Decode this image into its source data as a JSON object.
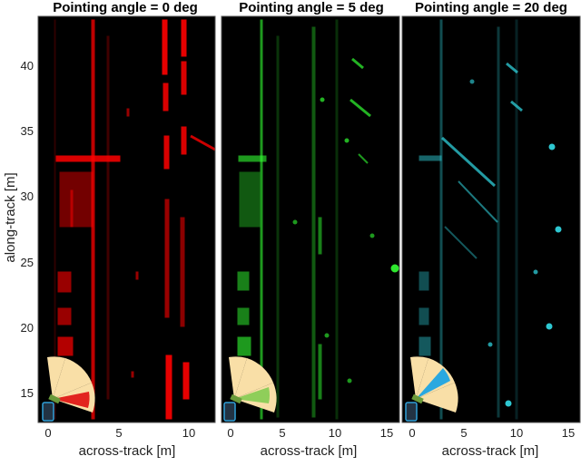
{
  "figure": {
    "ylabel": "along-track [m]",
    "yticks": [
      "15",
      "20",
      "25",
      "30",
      "35",
      "40"
    ],
    "panels": [
      {
        "title": "Pointing angle = 0 deg",
        "xlabel": "across-track [m]",
        "xticks": [
          "0",
          "5",
          "10"
        ],
        "color": "#ff0000",
        "angle_deg": 0
      },
      {
        "title": "Pointing angle = 5 deg",
        "xlabel": "across-track [m]",
        "xticks": [
          "0",
          "5",
          "10",
          "15"
        ],
        "color": "#33ff33",
        "angle_deg": 5
      },
      {
        "title": "Pointing angle = 20 deg",
        "xlabel": "across-track [m]",
        "xticks": [
          "0",
          "5",
          "10",
          "15"
        ],
        "color": "#33dde8",
        "angle_deg": 20
      }
    ]
  },
  "colors": {
    "background": "#000000",
    "fov_fill": "#f9dfa7",
    "vehicle_fill": "#223344",
    "vehicle_stroke": "#2f9fd8",
    "antenna": "#6a9a3a"
  }
}
